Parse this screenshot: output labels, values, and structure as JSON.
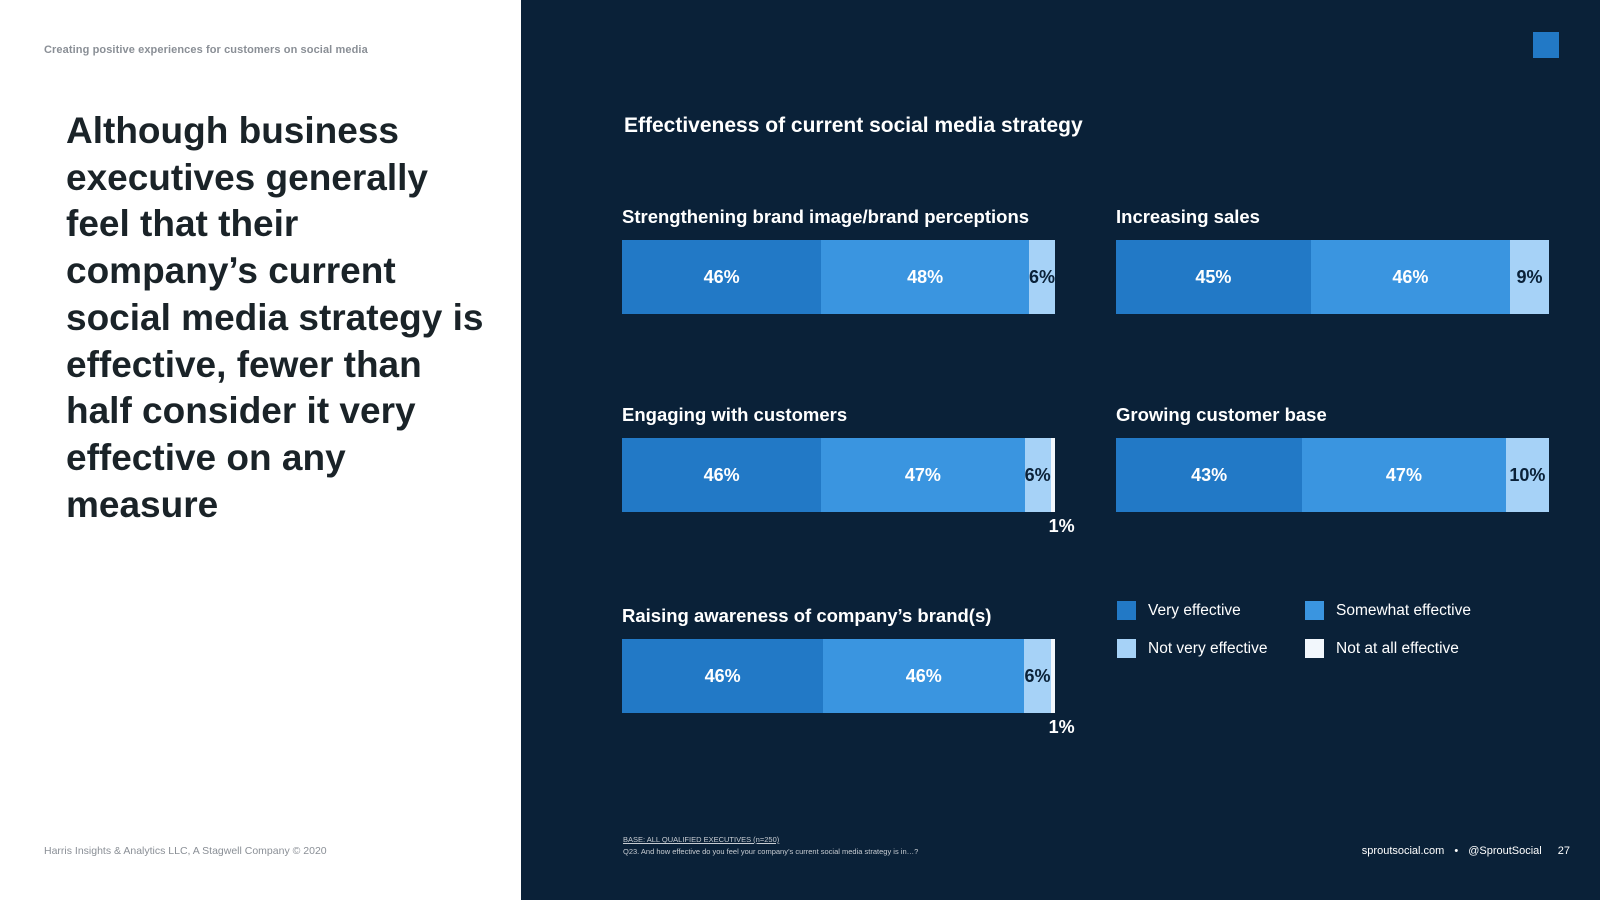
{
  "kicker": "Creating positive experiences for customers on social media",
  "headline": "Although business executives generally feel that their company’s current social media strategy is effective, fewer than half consider it very effective on any measure",
  "left_footer": "Harris Insights & Analytics LLC, A Stagwell Company © 2020",
  "colors": {
    "very_effective": "#2279c6",
    "somewhat_effective": "#3a95e0",
    "not_very_effective": "#a6d2f7",
    "not_at_all_effective": "#f2f7fc",
    "background_dark": "#0a2138"
  },
  "chart_data": {
    "type": "bar",
    "stacked": "horizontal-100%",
    "title": "Effectiveness of current social media strategy",
    "series_names": [
      "Very effective",
      "Somewhat effective",
      "Not very effective",
      "Not at all effective"
    ],
    "categories": [
      {
        "label": "Strengthening brand image/brand perceptions",
        "values": [
          46,
          48,
          6,
          0
        ],
        "value_labels": [
          "46%",
          "48%",
          "6%",
          ""
        ]
      },
      {
        "label": "Increasing sales",
        "values": [
          45,
          46,
          9,
          0
        ],
        "value_labels": [
          "45%",
          "46%",
          "9%",
          ""
        ]
      },
      {
        "label": "Engaging with customers",
        "values": [
          46,
          47,
          6,
          1
        ],
        "value_labels": [
          "46%",
          "47%",
          "6%",
          "1%"
        ]
      },
      {
        "label": "Growing customer base",
        "values": [
          43,
          47,
          10,
          0
        ],
        "value_labels": [
          "43%",
          "47%",
          "10%",
          ""
        ]
      },
      {
        "label": "Raising awareness of company’s brand(s)",
        "values": [
          46,
          46,
          6,
          1
        ],
        "value_labels": [
          "46%",
          "46%",
          "6%",
          "1%"
        ]
      }
    ],
    "legend": [
      "Very effective",
      "Somewhat effective",
      "Not very effective",
      "Not at all effective"
    ],
    "xlim": [
      0,
      100
    ]
  },
  "notes": {
    "base": "BASE: ALL QUALIFIED EXECUTIVES (n=250)",
    "question": "Q23. And how effective do you feel your company’s current social media strategy is in…?"
  },
  "right_footer": {
    "site": "sproutsocial.com",
    "separator": "•",
    "handle": "@SproutSocial",
    "page_number": "27"
  }
}
